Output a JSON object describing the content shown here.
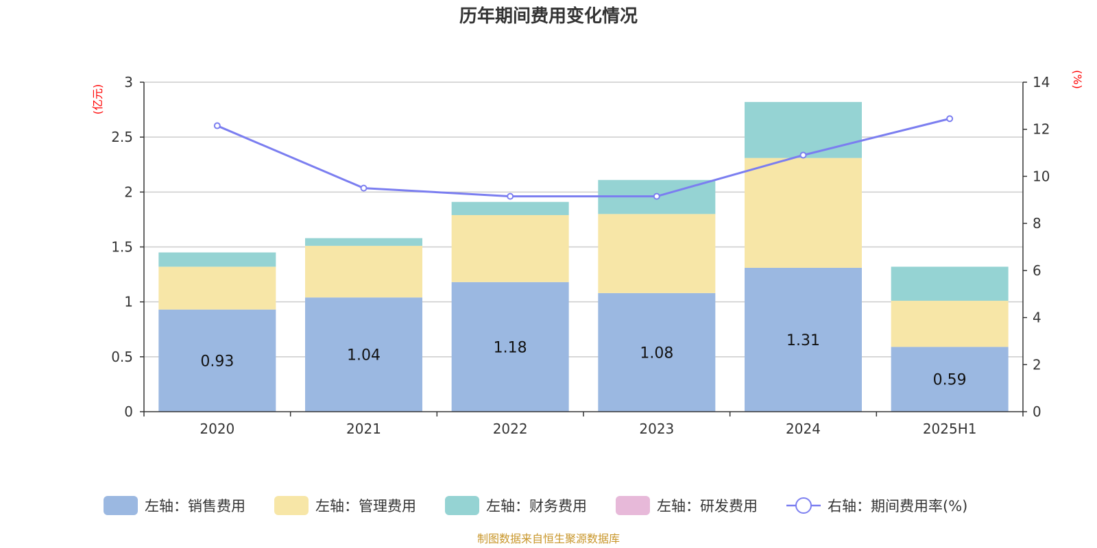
{
  "chart_data": {
    "type": "bar",
    "title": "历年期间费用变化情况",
    "categories": [
      "2020",
      "2021",
      "2022",
      "2023",
      "2024",
      "2025H1"
    ],
    "left_axis": {
      "unit": "(亿元)",
      "ylim": [
        0,
        3
      ],
      "ticks": [
        "0",
        "0.5",
        "1",
        "1.5",
        "2",
        "2.5",
        "3"
      ]
    },
    "right_axis": {
      "unit": "(%)",
      "ylim": [
        0,
        14
      ],
      "ticks": [
        "0",
        "2",
        "4",
        "6",
        "8",
        "10",
        "12",
        "14"
      ]
    },
    "series": [
      {
        "name": "左轴：销售费用",
        "type": "bar",
        "stack": "cost",
        "color": "#9bb8e1",
        "values": [
          0.93,
          1.04,
          1.18,
          1.08,
          1.31,
          0.59
        ],
        "data_labels": [
          "0.93",
          "1.04",
          "1.18",
          "1.08",
          "1.31",
          "0.59"
        ]
      },
      {
        "name": "左轴：管理费用",
        "type": "bar",
        "stack": "cost",
        "color": "#f7e6a7",
        "values": [
          0.39,
          0.47,
          0.61,
          0.72,
          1.0,
          0.42
        ]
      },
      {
        "name": "左轴：财务费用",
        "type": "bar",
        "stack": "cost",
        "color": "#95d3d3",
        "values": [
          0.13,
          0.07,
          0.12,
          0.31,
          0.51,
          0.31
        ]
      },
      {
        "name": "左轴：研发费用",
        "type": "bar",
        "stack": "cost",
        "color": "#e7b9d9",
        "values": [
          0,
          0,
          0,
          0,
          0,
          0
        ]
      },
      {
        "name": "右轴：期间费用率(%)",
        "type": "line",
        "axis": "right",
        "color": "#7b7ef0",
        "values": [
          12.15,
          9.5,
          9.15,
          9.15,
          10.9,
          12.45
        ]
      }
    ],
    "grid": true,
    "legend_position": "bottom"
  },
  "source_note": "制图数据来自恒生聚源数据库"
}
